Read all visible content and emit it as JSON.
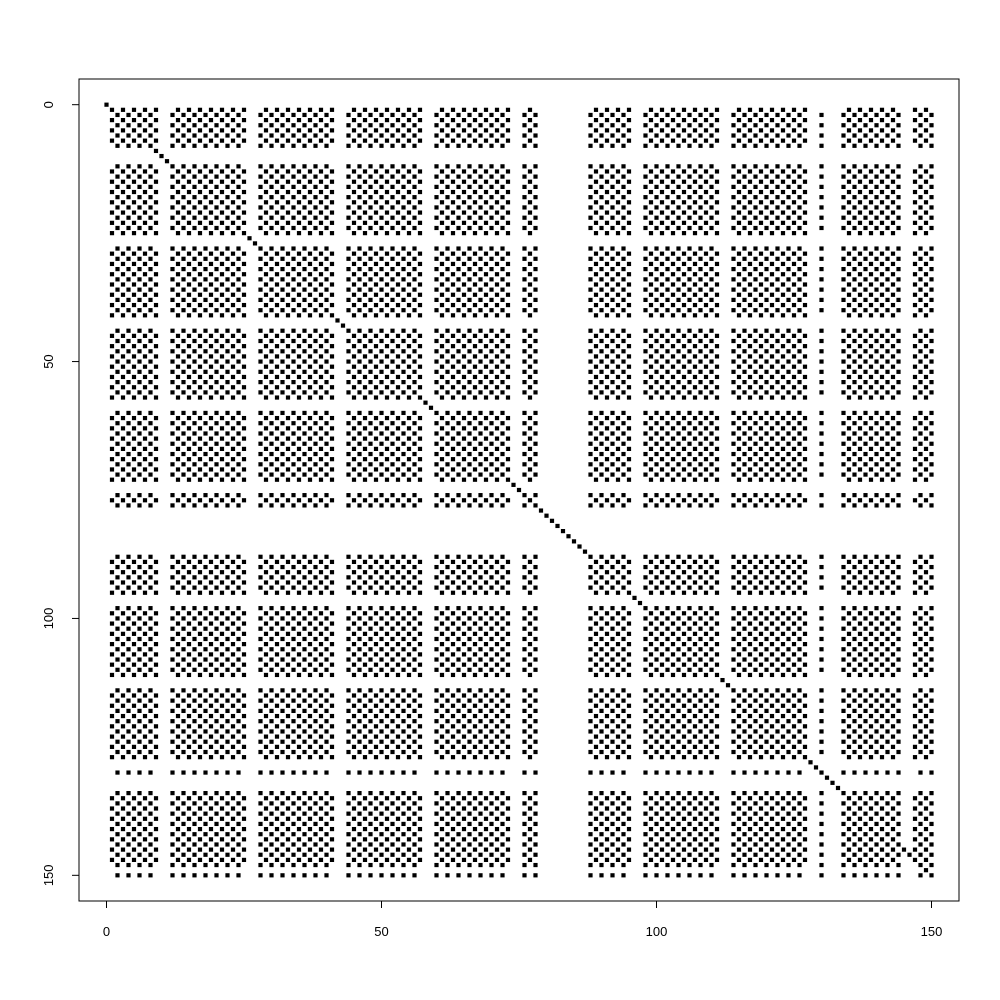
{
  "chart_data": {
    "type": "scatter",
    "title": "",
    "xlabel": "",
    "ylabel": "",
    "xlim": [
      -5,
      155
    ],
    "ylim": [
      155,
      -5
    ],
    "y_reversed": true,
    "x_ticks": [
      0,
      50,
      100,
      150
    ],
    "y_ticks": [
      0,
      50,
      100,
      150
    ],
    "x_tick_labels": [
      "0",
      "50",
      "100",
      "150"
    ],
    "y_tick_labels": [
      "0",
      "50",
      "100",
      "150"
    ],
    "marker": "filled-square",
    "color": "#000000",
    "grid": false,
    "legend": "none",
    "structure": {
      "matrix_size": 150,
      "diagonal": [
        0,
        149
      ],
      "row_blocks": [
        [
          1,
          8
        ],
        [
          12,
          25
        ],
        [
          28,
          41
        ],
        [
          44,
          57
        ],
        [
          60,
          73
        ],
        [
          76,
          79
        ],
        [
          87,
          95
        ],
        [
          98,
          111
        ],
        [
          114,
          127
        ],
        [
          130,
          130
        ],
        [
          134,
          148
        ],
        [
          150,
          150
        ]
      ],
      "col_blocks": [
        [
          1,
          9
        ],
        [
          12,
          25
        ],
        [
          28,
          41
        ],
        [
          44,
          57
        ],
        [
          60,
          73
        ],
        [
          76,
          80
        ],
        [
          87,
          95
        ],
        [
          98,
          111
        ],
        [
          114,
          127
        ],
        [
          130,
          130
        ],
        [
          134,
          144
        ],
        [
          147,
          150
        ]
      ],
      "pattern": "checkerboard",
      "excluded": [
        [
          79,
          87
        ]
      ]
    }
  }
}
